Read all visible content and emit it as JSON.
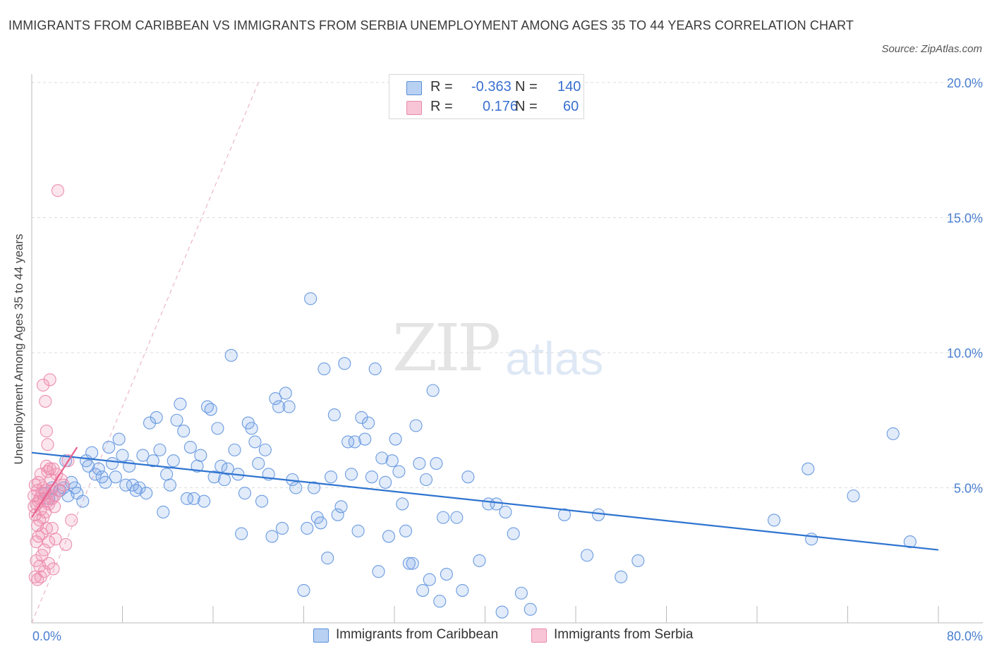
{
  "title": "IMMIGRANTS FROM CARIBBEAN VS IMMIGRANTS FROM SERBIA UNEMPLOYMENT AMONG AGES 35 TO 44 YEARS CORRELATION CHART",
  "source": "Source: ZipAtlas.com",
  "watermark": {
    "zip": "ZIP",
    "atlas": "atlas"
  },
  "legend": {
    "r_label": "R =",
    "n_label": "N =",
    "series": [
      {
        "name": "Immigrants from Caribbean",
        "r": "-0.363",
        "n": "140",
        "fill": "#b8d1f3",
        "stroke": "#5b8fd8"
      },
      {
        "name": "Immigrants from Serbia",
        "r": "0.176",
        "n": "60",
        "fill": "#f8c5d6",
        "stroke": "#e88aaa"
      }
    ]
  },
  "colors": {
    "blue_point_fill": "rgba(120,165,230,0.22)",
    "blue_point_stroke": "#6b9be0",
    "pink_point_fill": "rgba(240,140,175,0.22)",
    "pink_point_stroke": "#ec8fb0",
    "blue_trend": "#2f74d0",
    "pink_trend": "#e8608f",
    "grid": "#dcdcdc",
    "axis_text": "#4a7fd0"
  },
  "chart_data": {
    "type": "scatter",
    "title": "IMMIGRANTS FROM CARIBBEAN VS IMMIGRANTS FROM SERBIA UNEMPLOYMENT AMONG AGES 35 TO 44 YEARS CORRELATION CHART",
    "xlabel": "",
    "ylabel": "Unemployment Among Ages 35 to 44 years",
    "xlim": [
      0,
      80
    ],
    "ylim": [
      0,
      20
    ],
    "x_tick_labels": [
      "0.0%",
      "80.0%"
    ],
    "y_ticks": [
      5,
      10,
      15,
      20
    ],
    "y_tick_labels": [
      "5.0%",
      "10.0%",
      "15.0%",
      "20.0%"
    ],
    "grid": true,
    "series": [
      {
        "name": "Immigrants from Caribbean",
        "r": -0.363,
        "n": 140,
        "trend": {
          "x": [
            0,
            80
          ],
          "y": [
            6.3,
            2.7
          ]
        },
        "points": [
          [
            1.2,
            4.8
          ],
          [
            1.5,
            4.6
          ],
          [
            1.8,
            5.0
          ],
          [
            2.0,
            4.7
          ],
          [
            2.5,
            4.9
          ],
          [
            2.8,
            5.0
          ],
          [
            3.0,
            6.0
          ],
          [
            3.2,
            4.7
          ],
          [
            3.5,
            5.2
          ],
          [
            3.8,
            5.0
          ],
          [
            4.0,
            4.8
          ],
          [
            4.5,
            4.5
          ],
          [
            4.8,
            6.0
          ],
          [
            5.0,
            5.8
          ],
          [
            5.3,
            6.3
          ],
          [
            5.6,
            5.5
          ],
          [
            5.9,
            5.7
          ],
          [
            6.2,
            5.4
          ],
          [
            6.5,
            5.2
          ],
          [
            6.8,
            6.5
          ],
          [
            7.1,
            5.9
          ],
          [
            7.4,
            5.4
          ],
          [
            7.7,
            6.8
          ],
          [
            8.0,
            6.2
          ],
          [
            8.3,
            5.1
          ],
          [
            8.6,
            5.8
          ],
          [
            8.9,
            5.1
          ],
          [
            9.2,
            4.9
          ],
          [
            9.5,
            5.0
          ],
          [
            9.8,
            6.2
          ],
          [
            10.1,
            4.8
          ],
          [
            10.4,
            7.4
          ],
          [
            10.7,
            6.0
          ],
          [
            11.0,
            7.6
          ],
          [
            11.3,
            6.4
          ],
          [
            11.6,
            4.1
          ],
          [
            11.9,
            5.5
          ],
          [
            12.2,
            5.1
          ],
          [
            12.5,
            6.0
          ],
          [
            12.8,
            7.5
          ],
          [
            13.1,
            8.1
          ],
          [
            13.4,
            7.1
          ],
          [
            13.7,
            4.6
          ],
          [
            14.0,
            6.5
          ],
          [
            14.3,
            4.6
          ],
          [
            14.6,
            5.8
          ],
          [
            14.9,
            6.2
          ],
          [
            15.2,
            4.5
          ],
          [
            15.5,
            8.0
          ],
          [
            15.8,
            7.9
          ],
          [
            16.1,
            5.4
          ],
          [
            16.4,
            7.2
          ],
          [
            16.7,
            5.8
          ],
          [
            17.0,
            5.3
          ],
          [
            17.3,
            5.7
          ],
          [
            17.6,
            9.9
          ],
          [
            17.9,
            6.4
          ],
          [
            18.2,
            5.5
          ],
          [
            18.5,
            3.3
          ],
          [
            18.8,
            4.8
          ],
          [
            19.1,
            7.4
          ],
          [
            19.4,
            7.2
          ],
          [
            19.7,
            6.7
          ],
          [
            20.0,
            5.9
          ],
          [
            20.3,
            4.5
          ],
          [
            20.6,
            6.4
          ],
          [
            20.9,
            5.5
          ],
          [
            21.2,
            3.2
          ],
          [
            21.5,
            8.3
          ],
          [
            21.8,
            8.0
          ],
          [
            22.1,
            3.5
          ],
          [
            22.4,
            8.5
          ],
          [
            22.7,
            8.0
          ],
          [
            23.0,
            5.3
          ],
          [
            23.3,
            5.0
          ],
          [
            24.0,
            1.2
          ],
          [
            24.3,
            3.5
          ],
          [
            24.6,
            12.0
          ],
          [
            24.9,
            5.0
          ],
          [
            25.2,
            3.9
          ],
          [
            25.5,
            3.7
          ],
          [
            25.8,
            9.4
          ],
          [
            26.1,
            2.4
          ],
          [
            26.4,
            5.4
          ],
          [
            26.7,
            7.7
          ],
          [
            27.0,
            4.0
          ],
          [
            27.3,
            4.3
          ],
          [
            27.6,
            9.6
          ],
          [
            27.9,
            6.7
          ],
          [
            28.2,
            5.5
          ],
          [
            28.5,
            6.7
          ],
          [
            28.8,
            3.4
          ],
          [
            29.1,
            7.6
          ],
          [
            29.4,
            6.8
          ],
          [
            29.7,
            7.4
          ],
          [
            30.0,
            5.4
          ],
          [
            30.3,
            9.4
          ],
          [
            30.6,
            1.9
          ],
          [
            30.9,
            6.1
          ],
          [
            31.2,
            5.2
          ],
          [
            31.5,
            3.2
          ],
          [
            31.8,
            6.0
          ],
          [
            32.1,
            6.8
          ],
          [
            32.4,
            5.6
          ],
          [
            32.7,
            4.4
          ],
          [
            33.0,
            3.4
          ],
          [
            33.3,
            2.2
          ],
          [
            33.6,
            2.2
          ],
          [
            33.9,
            7.3
          ],
          [
            34.2,
            5.9
          ],
          [
            34.5,
            1.2
          ],
          [
            34.8,
            5.3
          ],
          [
            35.1,
            1.6
          ],
          [
            35.4,
            8.6
          ],
          [
            35.7,
            5.9
          ],
          [
            36.0,
            0.8
          ],
          [
            36.3,
            3.9
          ],
          [
            36.6,
            1.8
          ],
          [
            37.5,
            3.9
          ],
          [
            38.0,
            1.2
          ],
          [
            38.5,
            5.4
          ],
          [
            39.5,
            2.3
          ],
          [
            40.3,
            4.4
          ],
          [
            41.0,
            4.4
          ],
          [
            41.5,
            0.4
          ],
          [
            41.8,
            4.1
          ],
          [
            42.5,
            3.3
          ],
          [
            43.2,
            1.1
          ],
          [
            44.0,
            0.5
          ],
          [
            47.0,
            4.0
          ],
          [
            49.0,
            2.5
          ],
          [
            50.0,
            4.0
          ],
          [
            52.0,
            1.7
          ],
          [
            53.5,
            2.3
          ],
          [
            65.5,
            3.8
          ],
          [
            68.5,
            5.7
          ],
          [
            68.8,
            3.1
          ],
          [
            72.5,
            4.7
          ],
          [
            76.0,
            7.0
          ],
          [
            77.5,
            3.0
          ]
        ]
      },
      {
        "name": "Immigrants from Serbia",
        "r": 0.176,
        "n": 60,
        "trend": {
          "x": [
            0,
            4
          ],
          "y": [
            3.9,
            6.5
          ]
        },
        "points": [
          [
            0.2,
            4.3
          ],
          [
            0.2,
            4.7
          ],
          [
            0.3,
            5.1
          ],
          [
            0.3,
            4.0
          ],
          [
            0.4,
            4.4
          ],
          [
            0.4,
            3.0
          ],
          [
            0.5,
            4.9
          ],
          [
            0.5,
            3.6
          ],
          [
            0.6,
            5.2
          ],
          [
            0.6,
            4.5
          ],
          [
            0.7,
            3.8
          ],
          [
            0.7,
            2.1
          ],
          [
            0.8,
            1.7
          ],
          [
            0.8,
            4.2
          ],
          [
            0.9,
            4.8
          ],
          [
            0.9,
            3.3
          ],
          [
            1.0,
            8.8
          ],
          [
            1.0,
            5.0
          ],
          [
            1.1,
            4.6
          ],
          [
            1.1,
            2.7
          ],
          [
            1.2,
            8.2
          ],
          [
            1.2,
            4.9
          ],
          [
            1.3,
            7.1
          ],
          [
            1.3,
            3.5
          ],
          [
            1.4,
            6.6
          ],
          [
            1.4,
            5.6
          ],
          [
            1.5,
            4.4
          ],
          [
            1.5,
            2.2
          ],
          [
            1.6,
            9.0
          ],
          [
            1.6,
            5.7
          ],
          [
            1.7,
            5.3
          ],
          [
            1.7,
            4.9
          ],
          [
            1.8,
            4.6
          ],
          [
            1.8,
            3.5
          ],
          [
            1.9,
            5.7
          ],
          [
            1.9,
            2.0
          ],
          [
            2.0,
            4.7
          ],
          [
            2.0,
            4.3
          ],
          [
            2.1,
            3.1
          ],
          [
            2.2,
            5.5
          ],
          [
            2.3,
            16.0
          ],
          [
            2.4,
            4.9
          ],
          [
            2.6,
            5.3
          ],
          [
            2.8,
            5.1
          ],
          [
            3.0,
            2.9
          ],
          [
            3.2,
            6.0
          ],
          [
            3.5,
            3.8
          ],
          [
            0.3,
            1.7
          ],
          [
            0.4,
            2.3
          ],
          [
            0.5,
            1.6
          ],
          [
            0.6,
            3.2
          ],
          [
            0.7,
            4.6
          ],
          [
            0.8,
            5.5
          ],
          [
            0.9,
            2.5
          ],
          [
            1.0,
            3.9
          ],
          [
            1.1,
            1.9
          ],
          [
            1.2,
            4.1
          ],
          [
            1.3,
            5.8
          ],
          [
            1.4,
            4.5
          ],
          [
            1.5,
            3.0
          ]
        ]
      }
    ]
  }
}
